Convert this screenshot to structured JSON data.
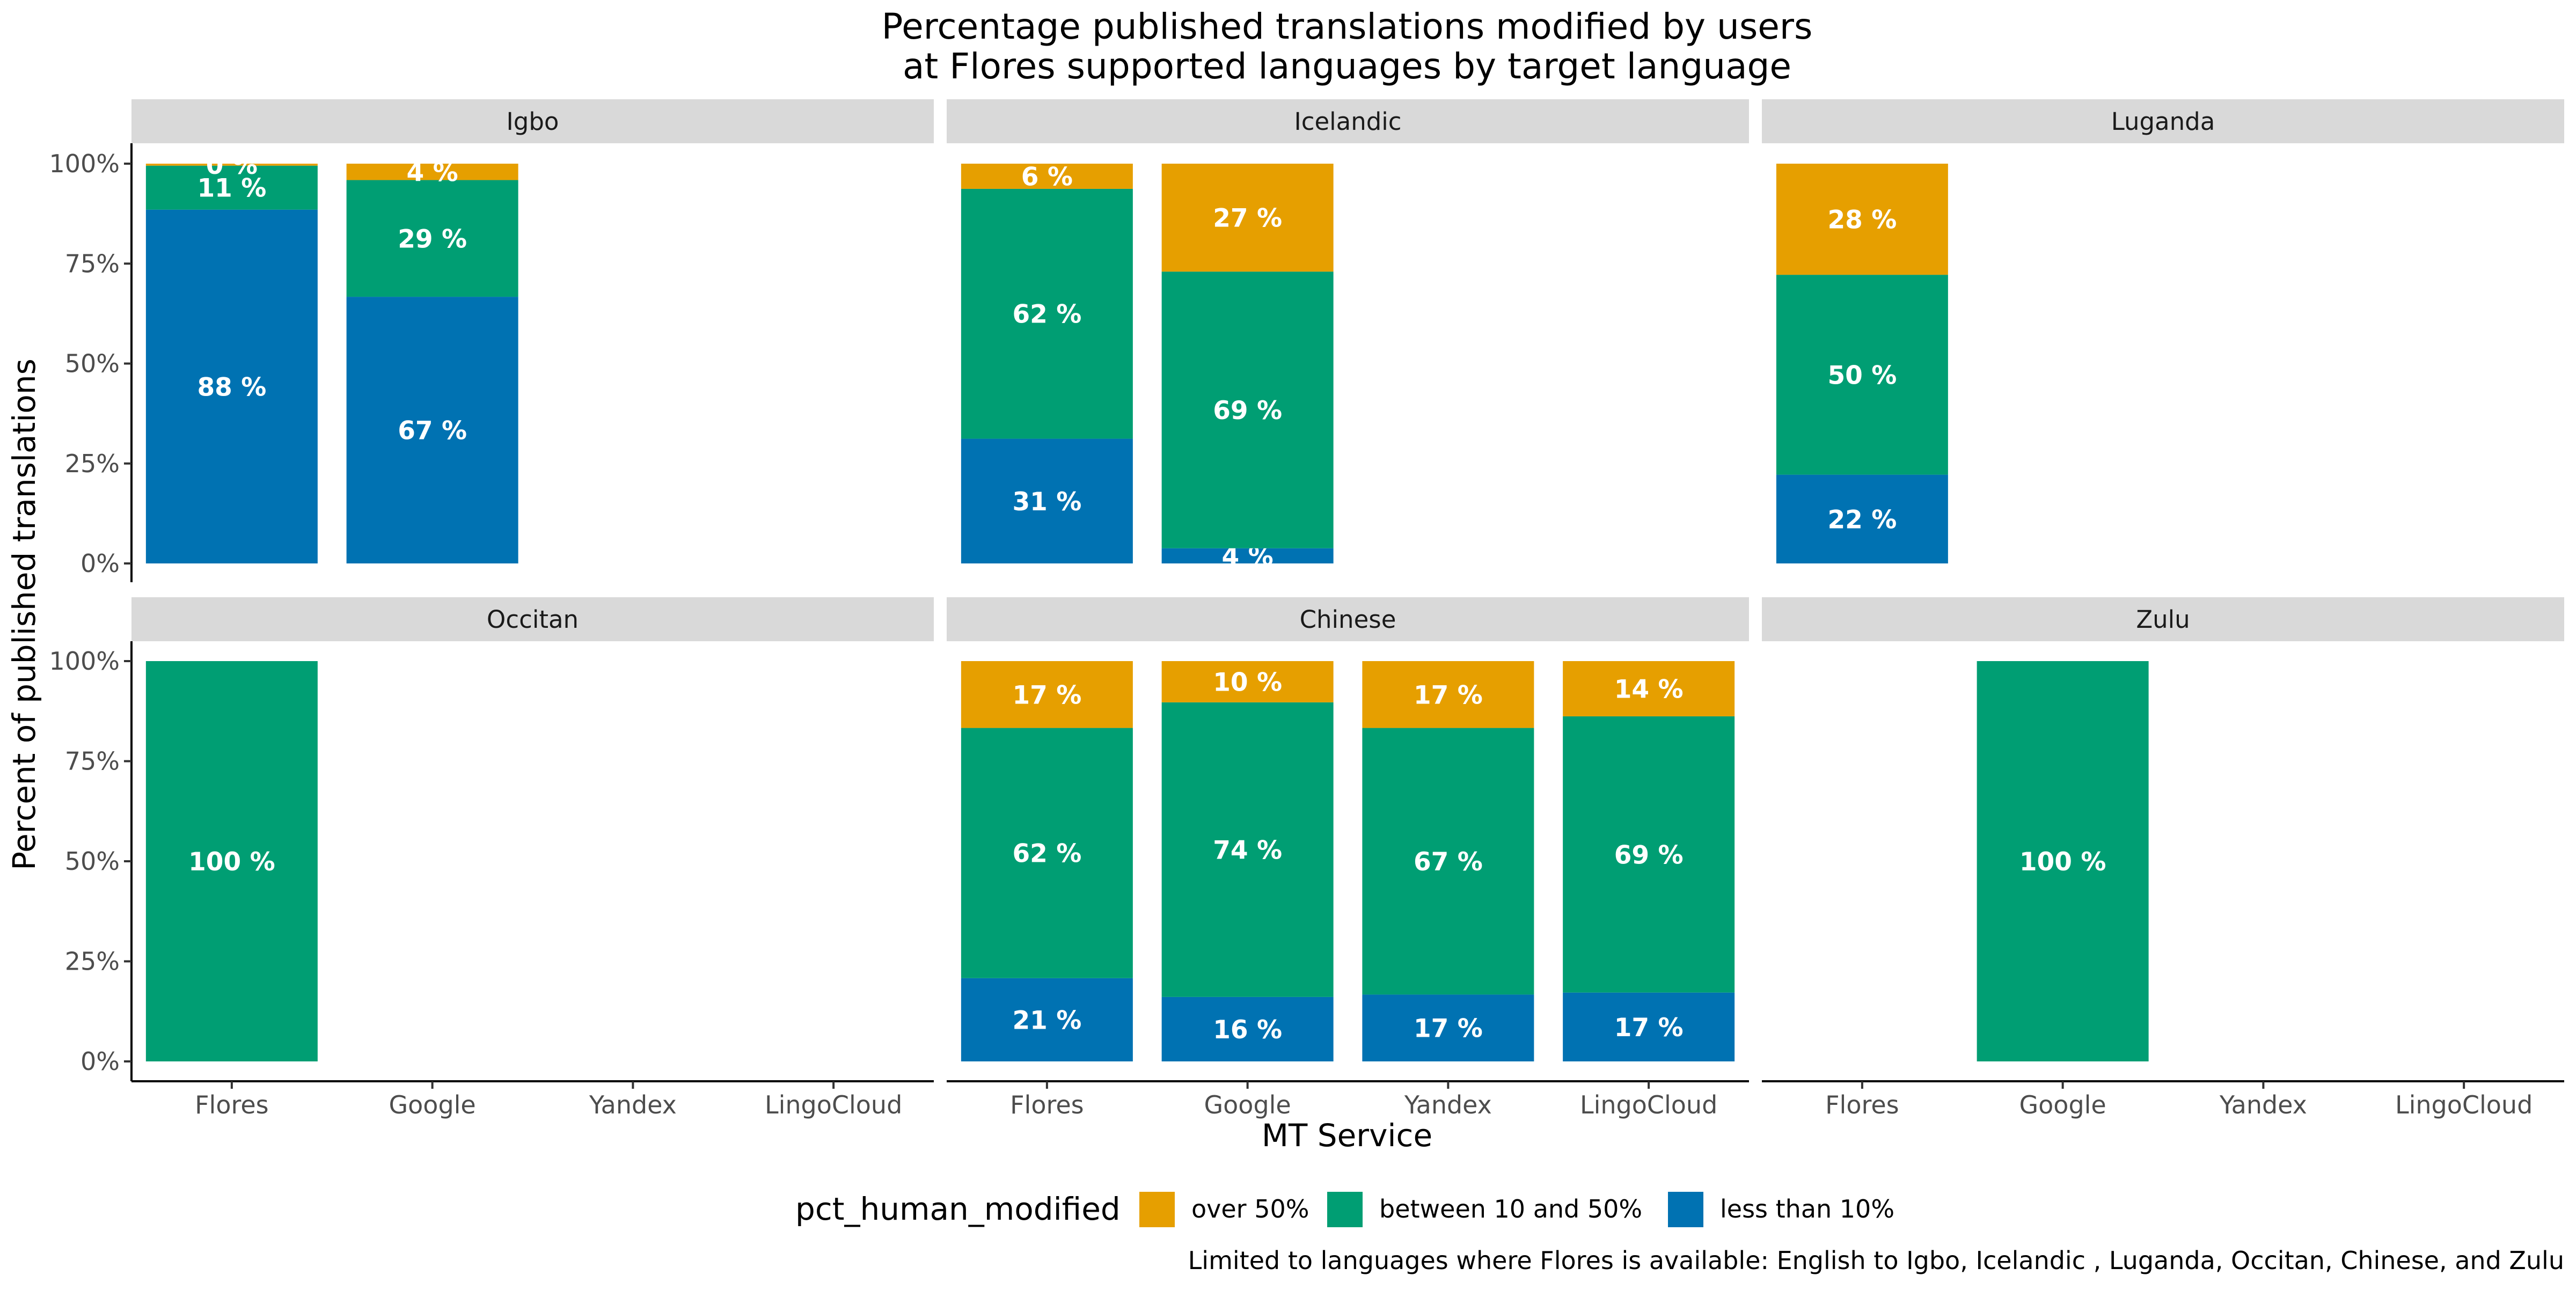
{
  "chart_data": {
    "type": "bar",
    "stacked": true,
    "title": "Percentage published translations modified by users\n at Flores supported languages by target language",
    "xlabel": "MT Service",
    "ylabel": "Percent of published translations",
    "categories": [
      "Flores",
      "Google",
      "Yandex",
      "LingoCloud"
    ],
    "y_ticks": [
      "0%",
      "25%",
      "50%",
      "75%",
      "100%"
    ],
    "ylim": [
      0,
      100
    ],
    "legend": {
      "title": "pct_human_modified",
      "position": "bottom",
      "entries": [
        {
          "key": "over",
          "label": "over 50%",
          "color": "#E69F00"
        },
        {
          "key": "between",
          "label": "between 10 and 50%",
          "color": "#009E73"
        },
        {
          "key": "less",
          "label": "less than 10%",
          "color": "#0072B2"
        }
      ]
    },
    "stack_order_bottom_to_top": [
      "less",
      "between",
      "over"
    ],
    "caption": "Limited to languages where Flores is available: English to Igbo, Icelandic , Luganda, Occitan, Chinese, and Zulu",
    "facets": [
      {
        "name": "Igbo",
        "bars": [
          {
            "category": "Flores",
            "segments": [
              {
                "key": "less",
                "value": 88.5,
                "label": "88 %"
              },
              {
                "key": "between",
                "value": 11.0,
                "label": "11 %"
              },
              {
                "key": "over",
                "value": 0.5,
                "label": "0 %"
              }
            ]
          },
          {
            "category": "Google",
            "segments": [
              {
                "key": "less",
                "value": 66.7,
                "label": "67 %"
              },
              {
                "key": "between",
                "value": 29.2,
                "label": "29 %"
              },
              {
                "key": "over",
                "value": 4.1,
                "label": "4 %"
              }
            ]
          }
        ]
      },
      {
        "name": "Icelandic",
        "bars": [
          {
            "category": "Flores",
            "segments": [
              {
                "key": "less",
                "value": 31.2,
                "label": "31 %"
              },
              {
                "key": "between",
                "value": 62.5,
                "label": "62 %"
              },
              {
                "key": "over",
                "value": 6.3,
                "label": "6 %"
              }
            ]
          },
          {
            "category": "Google",
            "segments": [
              {
                "key": "less",
                "value": 3.8,
                "label": "4 %"
              },
              {
                "key": "between",
                "value": 69.2,
                "label": "69 %"
              },
              {
                "key": "over",
                "value": 27.0,
                "label": "27 %"
              }
            ]
          }
        ]
      },
      {
        "name": "Luganda",
        "bars": [
          {
            "category": "Flores",
            "segments": [
              {
                "key": "less",
                "value": 22.2,
                "label": "22 %"
              },
              {
                "key": "between",
                "value": 50.0,
                "label": "50 %"
              },
              {
                "key": "over",
                "value": 27.8,
                "label": "28 %"
              }
            ]
          }
        ]
      },
      {
        "name": "Occitan",
        "bars": [
          {
            "category": "Flores",
            "segments": [
              {
                "key": "between",
                "value": 100,
                "label": "100 %"
              }
            ]
          }
        ]
      },
      {
        "name": "Chinese",
        "bars": [
          {
            "category": "Flores",
            "segments": [
              {
                "key": "less",
                "value": 20.8,
                "label": "21 %"
              },
              {
                "key": "between",
                "value": 62.5,
                "label": "62 %"
              },
              {
                "key": "over",
                "value": 16.7,
                "label": "17 %"
              }
            ]
          },
          {
            "category": "Google",
            "segments": [
              {
                "key": "less",
                "value": 16.1,
                "label": "16 %"
              },
              {
                "key": "between",
                "value": 73.6,
                "label": "74 %"
              },
              {
                "key": "over",
                "value": 10.3,
                "label": "10 %"
              }
            ]
          },
          {
            "category": "Yandex",
            "segments": [
              {
                "key": "less",
                "value": 16.7,
                "label": "17 %"
              },
              {
                "key": "between",
                "value": 66.6,
                "label": "67 %"
              },
              {
                "key": "over",
                "value": 16.7,
                "label": "17 %"
              }
            ]
          },
          {
            "category": "LingoCloud",
            "segments": [
              {
                "key": "less",
                "value": 17.2,
                "label": "17 %"
              },
              {
                "key": "between",
                "value": 69.0,
                "label": "69 %"
              },
              {
                "key": "over",
                "value": 13.8,
                "label": "14 %"
              }
            ]
          }
        ]
      },
      {
        "name": "Zulu",
        "bars": [
          {
            "category": "Google",
            "segments": [
              {
                "key": "between",
                "value": 100,
                "label": "100 %"
              }
            ]
          }
        ]
      }
    ]
  }
}
